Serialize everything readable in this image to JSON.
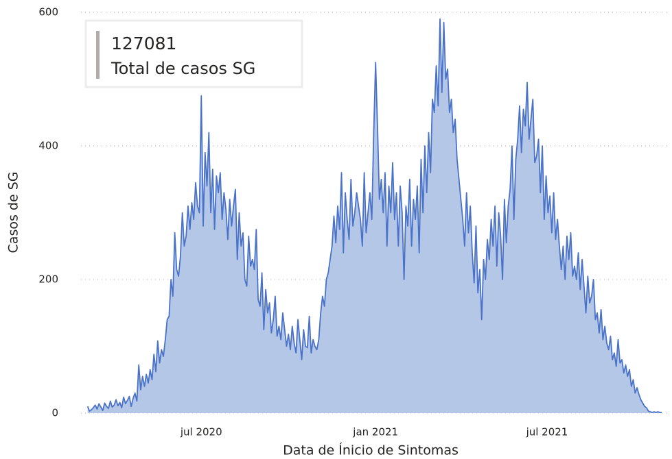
{
  "chart_data": {
    "type": "area",
    "kpi": {
      "value": "127081",
      "label": "Total de casos SG"
    },
    "xlabel": "Data de Ínicio de Sintomas",
    "ylabel": "Casos de SG",
    "xlim": [
      "2020-02-25",
      "2021-11-07"
    ],
    "xticks": [
      {
        "value": "2020-07-01",
        "label": "jul 2020"
      },
      {
        "value": "2021-01-01",
        "label": "jan 2021"
      },
      {
        "value": "2021-07-01",
        "label": "jul 2021"
      }
    ],
    "ylim": [
      0,
      600
    ],
    "yticks": [
      0,
      200,
      400,
      600
    ],
    "grid": true,
    "color": "#4a72c8",
    "fill": "#b4c7e7",
    "x": [
      "2020-03-03",
      "2020-03-05",
      "2020-03-07",
      "2020-03-09",
      "2020-03-11",
      "2020-03-13",
      "2020-03-15",
      "2020-03-17",
      "2020-03-19",
      "2020-03-21",
      "2020-03-23",
      "2020-03-25",
      "2020-03-27",
      "2020-03-29",
      "2020-03-31",
      "2020-04-02",
      "2020-04-04",
      "2020-04-06",
      "2020-04-08",
      "2020-04-10",
      "2020-04-12",
      "2020-04-14",
      "2020-04-16",
      "2020-04-18",
      "2020-04-20",
      "2020-04-22",
      "2020-04-24",
      "2020-04-26",
      "2020-04-28",
      "2020-04-30",
      "2020-05-02",
      "2020-05-04",
      "2020-05-06",
      "2020-05-08",
      "2020-05-10",
      "2020-05-12",
      "2020-05-14",
      "2020-05-16",
      "2020-05-18",
      "2020-05-20",
      "2020-05-22",
      "2020-05-24",
      "2020-05-26",
      "2020-05-28",
      "2020-05-30",
      "2020-06-01",
      "2020-06-03",
      "2020-06-05",
      "2020-06-07",
      "2020-06-09",
      "2020-06-11",
      "2020-06-13",
      "2020-06-15",
      "2020-06-17",
      "2020-06-19",
      "2020-06-21",
      "2020-06-23",
      "2020-06-25",
      "2020-06-27",
      "2020-06-29",
      "2020-07-01",
      "2020-07-03",
      "2020-07-05",
      "2020-07-07",
      "2020-07-09",
      "2020-07-11",
      "2020-07-13",
      "2020-07-15",
      "2020-07-17",
      "2020-07-19",
      "2020-07-21",
      "2020-07-23",
      "2020-07-25",
      "2020-07-27",
      "2020-07-29",
      "2020-07-31",
      "2020-08-02",
      "2020-08-04",
      "2020-08-06",
      "2020-08-08",
      "2020-08-10",
      "2020-08-12",
      "2020-08-14",
      "2020-08-16",
      "2020-08-18",
      "2020-08-20",
      "2020-08-22",
      "2020-08-24",
      "2020-08-26",
      "2020-08-28",
      "2020-08-30",
      "2020-09-01",
      "2020-09-03",
      "2020-09-05",
      "2020-09-07",
      "2020-09-09",
      "2020-09-11",
      "2020-09-13",
      "2020-09-15",
      "2020-09-17",
      "2020-09-19",
      "2020-09-21",
      "2020-09-23",
      "2020-09-25",
      "2020-09-27",
      "2020-09-29",
      "2020-10-01",
      "2020-10-03",
      "2020-10-05",
      "2020-10-07",
      "2020-10-09",
      "2020-10-11",
      "2020-10-13",
      "2020-10-15",
      "2020-10-17",
      "2020-10-19",
      "2020-10-21",
      "2020-10-23",
      "2020-10-25",
      "2020-10-27",
      "2020-10-29",
      "2020-10-31",
      "2020-11-02",
      "2020-11-04",
      "2020-11-06",
      "2020-11-08",
      "2020-11-10",
      "2020-11-12",
      "2020-11-14",
      "2020-11-16",
      "2020-11-18",
      "2020-11-20",
      "2020-11-22",
      "2020-11-24",
      "2020-11-26",
      "2020-11-28",
      "2020-11-30",
      "2020-12-02",
      "2020-12-04",
      "2020-12-06",
      "2020-12-08",
      "2020-12-10",
      "2020-12-12",
      "2020-12-14",
      "2020-12-16",
      "2020-12-18",
      "2020-12-20",
      "2020-12-22",
      "2020-12-24",
      "2020-12-26",
      "2020-12-28",
      "2020-12-30",
      "2021-01-01",
      "2021-01-03",
      "2021-01-05",
      "2021-01-07",
      "2021-01-09",
      "2021-01-11",
      "2021-01-13",
      "2021-01-15",
      "2021-01-17",
      "2021-01-19",
      "2021-01-21",
      "2021-01-23",
      "2021-01-25",
      "2021-01-27",
      "2021-01-29",
      "2021-01-31",
      "2021-02-02",
      "2021-02-04",
      "2021-02-06",
      "2021-02-08",
      "2021-02-10",
      "2021-02-12",
      "2021-02-14",
      "2021-02-16",
      "2021-02-18",
      "2021-02-20",
      "2021-02-22",
      "2021-02-24",
      "2021-02-26",
      "2021-02-28",
      "2021-03-02",
      "2021-03-04",
      "2021-03-06",
      "2021-03-08",
      "2021-03-10",
      "2021-03-12",
      "2021-03-14",
      "2021-03-16",
      "2021-03-18",
      "2021-03-20",
      "2021-03-22",
      "2021-03-24",
      "2021-03-26",
      "2021-03-28",
      "2021-03-30",
      "2021-04-01",
      "2021-04-03",
      "2021-04-05",
      "2021-04-07",
      "2021-04-09",
      "2021-04-11",
      "2021-04-13",
      "2021-04-15",
      "2021-04-17",
      "2021-04-19",
      "2021-04-21",
      "2021-04-23",
      "2021-04-25",
      "2021-04-27",
      "2021-04-29",
      "2021-05-01",
      "2021-05-03",
      "2021-05-05",
      "2021-05-07",
      "2021-05-09",
      "2021-05-11",
      "2021-05-13",
      "2021-05-15",
      "2021-05-17",
      "2021-05-19",
      "2021-05-21",
      "2021-05-23",
      "2021-05-25",
      "2021-05-27",
      "2021-05-29",
      "2021-05-31",
      "2021-06-02",
      "2021-06-04",
      "2021-06-06",
      "2021-06-08",
      "2021-06-10",
      "2021-06-12",
      "2021-06-14",
      "2021-06-16",
      "2021-06-18",
      "2021-06-20",
      "2021-06-22",
      "2021-06-24",
      "2021-06-26",
      "2021-06-28",
      "2021-06-30",
      "2021-07-02",
      "2021-07-04",
      "2021-07-06",
      "2021-07-08",
      "2021-07-10",
      "2021-07-12",
      "2021-07-14",
      "2021-07-16",
      "2021-07-18",
      "2021-07-20",
      "2021-07-22",
      "2021-07-24",
      "2021-07-26",
      "2021-07-28",
      "2021-07-30",
      "2021-08-01",
      "2021-08-03",
      "2021-08-05",
      "2021-08-07",
      "2021-08-09",
      "2021-08-11",
      "2021-08-13",
      "2021-08-15",
      "2021-08-17",
      "2021-08-19",
      "2021-08-21",
      "2021-08-23",
      "2021-08-25",
      "2021-08-27",
      "2021-08-29",
      "2021-08-31",
      "2021-09-02",
      "2021-09-04",
      "2021-09-06",
      "2021-09-08",
      "2021-09-10",
      "2021-09-12",
      "2021-09-14",
      "2021-09-16",
      "2021-09-18",
      "2021-09-20",
      "2021-09-22",
      "2021-09-24",
      "2021-09-26",
      "2021-09-28",
      "2021-09-30",
      "2021-10-02",
      "2021-10-04",
      "2021-10-06",
      "2021-10-08",
      "2021-10-10",
      "2021-10-12",
      "2021-10-14",
      "2021-10-16",
      "2021-10-18",
      "2021-10-20",
      "2021-10-22",
      "2021-10-24",
      "2021-10-26",
      "2021-10-28",
      "2021-10-30"
    ],
    "values": [
      10,
      3,
      5,
      8,
      12,
      6,
      14,
      9,
      4,
      15,
      10,
      7,
      18,
      9,
      12,
      20,
      11,
      16,
      8,
      24,
      14,
      19,
      25,
      10,
      22,
      30,
      18,
      72,
      35,
      55,
      40,
      58,
      45,
      65,
      50,
      88,
      62,
      108,
      75,
      95,
      85,
      110,
      140,
      145,
      200,
      175,
      270,
      215,
      205,
      235,
      300,
      250,
      265,
      310,
      275,
      315,
      290,
      345,
      310,
      300,
      475,
      280,
      390,
      340,
      420,
      300,
      365,
      275,
      355,
      330,
      360,
      290,
      330,
      305,
      260,
      320,
      280,
      310,
      335,
      230,
      300,
      250,
      270,
      200,
      190,
      265,
      220,
      230,
      215,
      275,
      170,
      160,
      210,
      125,
      185,
      150,
      165,
      120,
      140,
      175,
      115,
      130,
      110,
      150,
      125,
      100,
      118,
      95,
      130,
      105,
      90,
      140,
      110,
      80,
      125,
      100,
      98,
      145,
      90,
      110,
      100,
      95,
      110,
      150,
      175,
      160,
      200,
      210,
      230,
      250,
      295,
      255,
      310,
      275,
      360,
      240,
      330,
      290,
      260,
      350,
      280,
      300,
      330,
      310,
      290,
      250,
      360,
      270,
      300,
      330,
      290,
      420,
      525,
      430,
      320,
      350,
      300,
      360,
      250,
      340,
      300,
      375,
      290,
      330,
      250,
      340,
      300,
      200,
      310,
      280,
      350,
      250,
      320,
      290,
      340,
      240,
      380,
      300,
      400,
      330,
      420,
      360,
      470,
      450,
      520,
      460,
      590,
      480,
      585,
      500,
      515,
      450,
      470,
      420,
      440,
      380,
      350,
      320,
      290,
      250,
      330,
      270,
      310,
      240,
      195,
      280,
      180,
      215,
      140,
      230,
      200,
      260,
      230,
      290,
      250,
      310,
      220,
      300,
      265,
      200,
      320,
      255,
      310,
      335,
      400,
      290,
      380,
      410,
      460,
      390,
      455,
      430,
      495,
      410,
      440,
      470,
      375,
      385,
      410,
      330,
      400,
      290,
      355,
      300,
      325,
      270,
      330,
      260,
      290,
      250,
      215,
      250,
      200,
      265,
      230,
      270,
      205,
      220,
      200,
      240,
      185,
      230,
      190,
      150,
      205,
      165,
      175,
      200,
      140,
      150,
      120,
      155,
      110,
      130,
      105,
      95,
      115,
      80,
      90,
      70,
      110,
      75,
      80,
      60,
      72,
      55,
      65,
      40,
      50,
      30,
      38,
      28,
      20,
      15,
      10,
      8,
      3,
      2,
      1,
      2,
      1,
      2,
      1,
      1
    ]
  }
}
